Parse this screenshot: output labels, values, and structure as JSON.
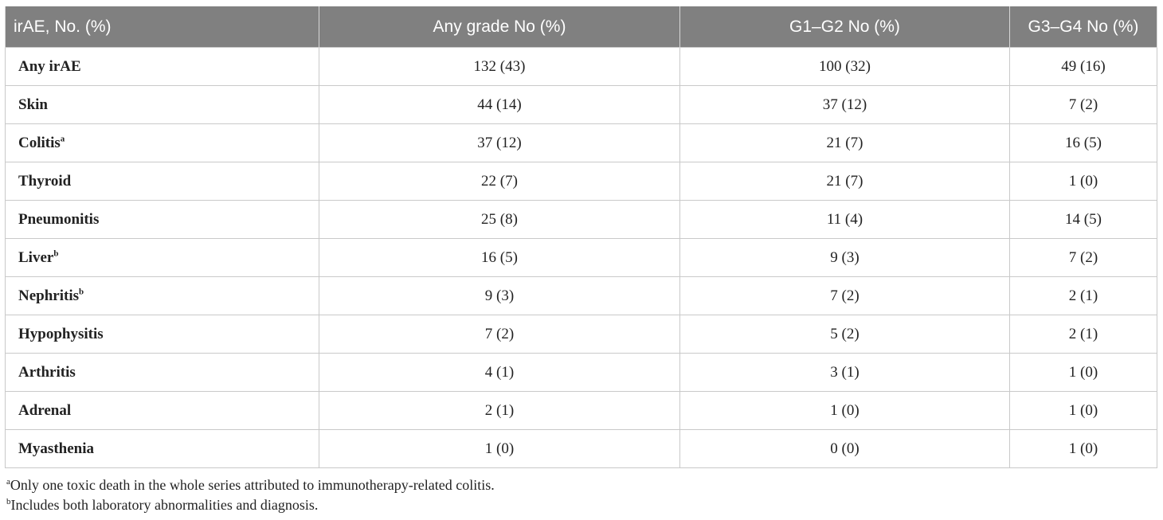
{
  "table": {
    "headers": [
      "irAE, No. (%)",
      "Any grade No (%)",
      "G1–G2 No (%)",
      "G3–G4 No (%)"
    ],
    "rows": [
      {
        "label": "Any irAE",
        "sup": "",
        "any": "132 (43)",
        "g12": "100 (32)",
        "g34": "49 (16)"
      },
      {
        "label": "Skin",
        "sup": "",
        "any": "44 (14)",
        "g12": "37 (12)",
        "g34": "7 (2)"
      },
      {
        "label": "Colitis",
        "sup": "a",
        "any": "37 (12)",
        "g12": "21 (7)",
        "g34": "16 (5)"
      },
      {
        "label": "Thyroid",
        "sup": "",
        "any": "22 (7)",
        "g12": "21 (7)",
        "g34": "1 (0)"
      },
      {
        "label": "Pneumonitis",
        "sup": "",
        "any": "25 (8)",
        "g12": "11 (4)",
        "g34": "14 (5)"
      },
      {
        "label": "Liver",
        "sup": "b",
        "any": "16 (5)",
        "g12": "9 (3)",
        "g34": "7 (2)"
      },
      {
        "label": "Nephritis",
        "sup": "b",
        "any": "9 (3)",
        "g12": "7 (2)",
        "g34": "2 (1)"
      },
      {
        "label": "Hypophysitis",
        "sup": "",
        "any": "7 (2)",
        "g12": "5 (2)",
        "g34": "2 (1)"
      },
      {
        "label": "Arthritis",
        "sup": "",
        "any": "4 (1)",
        "g12": "3 (1)",
        "g34": "1 (0)"
      },
      {
        "label": "Adrenal",
        "sup": "",
        "any": "2 (1)",
        "g12": "1 (0)",
        "g34": "1 (0)"
      },
      {
        "label": "Myasthenia",
        "sup": "",
        "any": "1 (0)",
        "g12": "0 (0)",
        "g34": "1 (0)"
      }
    ]
  },
  "footnotes": [
    {
      "mark": "a",
      "text": "Only one toxic death in the whole series attributed to immunotherapy-related colitis."
    },
    {
      "mark": "b",
      "text": "Includes both laboratory abnormalities and diagnosis."
    }
  ]
}
